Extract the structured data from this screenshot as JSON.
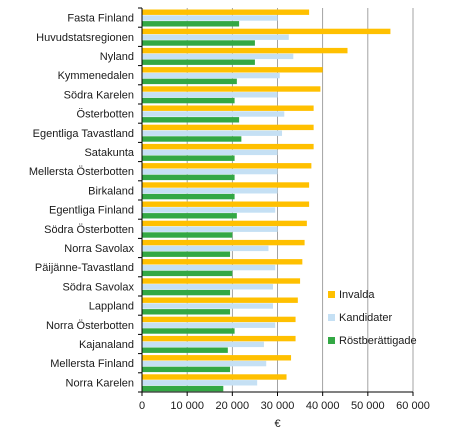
{
  "chart_data": {
    "type": "bar",
    "orientation": "horizontal",
    "title": "",
    "xlabel": "€",
    "ylabel": "",
    "xlim": [
      0,
      60000
    ],
    "x_ticks": [
      0,
      10000,
      20000,
      30000,
      40000,
      50000,
      60000
    ],
    "x_tick_labels": [
      "0",
      "10 000",
      "20 000",
      "30 000",
      "40 000",
      "50 000",
      "60 000"
    ],
    "grid": "vertical",
    "legend_position": "right-bottom",
    "categories": [
      "Fasta Finland",
      "Huvudstatsregionen",
      "Nyland",
      "Kymmenedalen",
      "Södra Karelen",
      "Österbotten",
      "Egentliga Tavastland",
      "Satakunta",
      "Mellersta Österbotten",
      "Birkaland",
      "Egentliga Finland",
      "Södra Österbotten",
      "Norra Savolax",
      "Päijänne-Tavastland",
      "Södra Savolax",
      "Lappland",
      "Norra Österbotten",
      "Kajanaland",
      "Mellersta Finland",
      "Norra Karelen"
    ],
    "series": [
      {
        "name": "Invalda",
        "color": "#ffc000",
        "values": [
          37000,
          55000,
          45500,
          40000,
          39500,
          38000,
          38000,
          38000,
          37500,
          37000,
          37000,
          36500,
          36000,
          35500,
          35000,
          34500,
          34000,
          34000,
          33000,
          32000
        ]
      },
      {
        "name": "Kandidater",
        "color": "#c5e0f4",
        "values": [
          30000,
          32500,
          33500,
          30500,
          30000,
          31500,
          31000,
          30000,
          30000,
          30000,
          29500,
          30000,
          28000,
          29500,
          29000,
          29000,
          29500,
          27000,
          27500,
          25500
        ]
      },
      {
        "name": "Röstberättigade",
        "color": "#33a844",
        "values": [
          21500,
          25000,
          25000,
          21000,
          20500,
          21500,
          22000,
          20500,
          20500,
          20500,
          21000,
          20000,
          19500,
          20000,
          19500,
          19500,
          20500,
          19000,
          19500,
          18000
        ]
      }
    ]
  }
}
